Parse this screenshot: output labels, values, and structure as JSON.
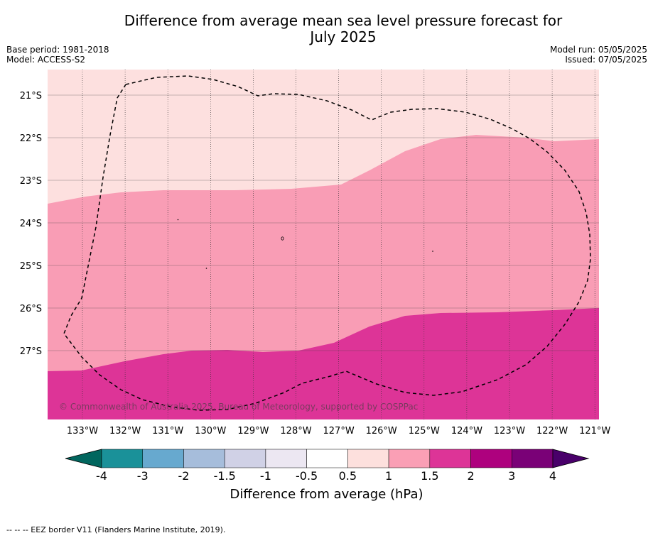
{
  "header": {
    "title_line1": "Difference from average mean sea level pressure forecast for",
    "title_line2": "July 2025",
    "base_period": "Base period: 1981-2018",
    "model": "Model: ACCESS-S2",
    "model_run": "Model run: 05/05/2025",
    "issued": "Issued: 07/05/2025"
  },
  "map": {
    "lon_ticks": [
      "133°W",
      "132°W",
      "131°W",
      "130°W",
      "129°W",
      "128°W",
      "127°W",
      "126°W",
      "125°W",
      "124°W",
      "123°W",
      "122°W",
      "121°W"
    ],
    "lat_ticks": [
      "21°S",
      "22°S",
      "23°S",
      "24°S",
      "25°S",
      "26°S",
      "27°S"
    ],
    "copyright": "© Commonwealth of Australia 2025, Bureau of Meteorology, supported by COSPPac",
    "fill_colors": {
      "band_0_5_1": "#fde0df",
      "band_1_1_5": "#f99db5",
      "band_1_5_2": "#dd3497"
    }
  },
  "colorbar": {
    "ticks": [
      "-4",
      "-3",
      "-2",
      "-1.5",
      "-1",
      "-0.5",
      "0.5",
      "1",
      "1.5",
      "2",
      "3",
      "4"
    ],
    "colors": [
      "#01665e",
      "#1a9199",
      "#67a9cf",
      "#a6bddb",
      "#d0d1e6",
      "#ece7f2",
      "#ffffff",
      "#fde0dd",
      "#fa9fb5",
      "#dd3497",
      "#ae017e",
      "#7a0177",
      "#49006a"
    ],
    "label": "Difference from average (hPa)"
  },
  "footer": {
    "text": "--  --  -- EEZ border V11 (Flanders Marine Institute, 2019)."
  }
}
